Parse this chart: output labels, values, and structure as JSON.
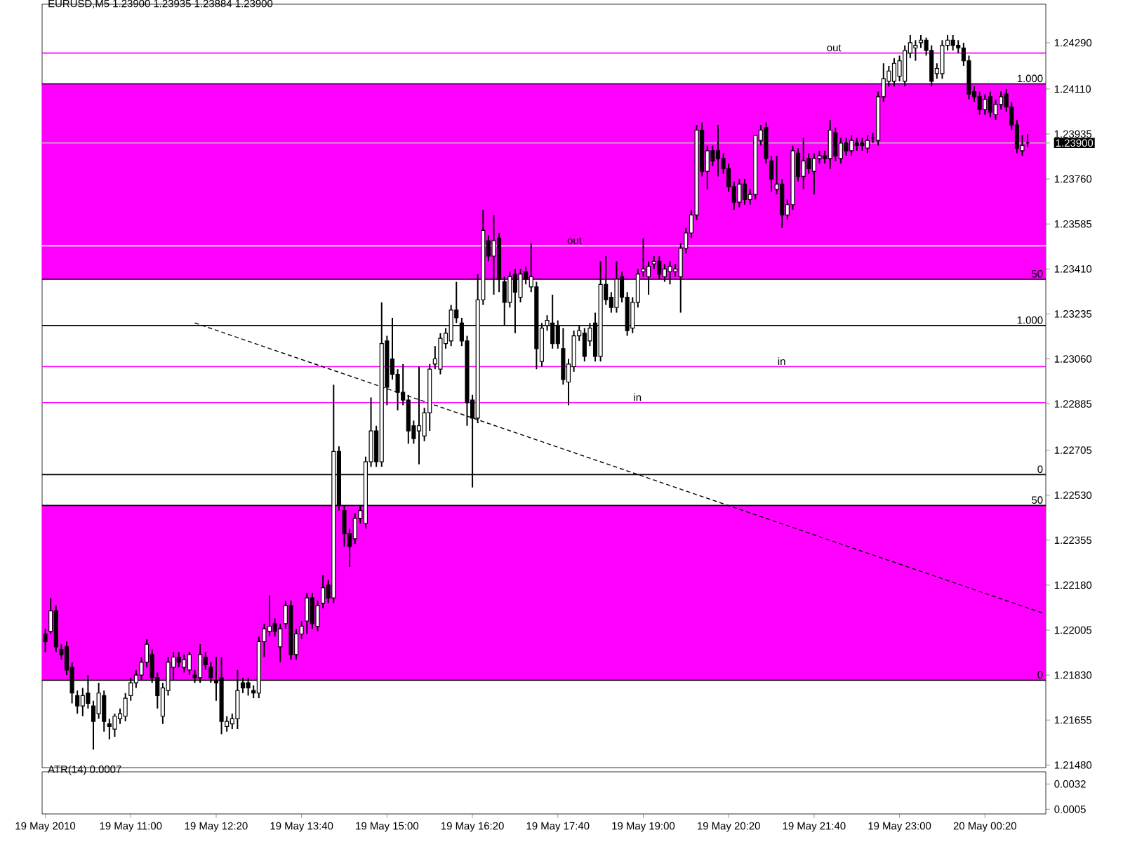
{
  "chart_data": [
    {
      "type": "candlestick",
      "title": "EURUSD,M5 1.23900 1.23935 1.23884 1.23900",
      "xlim": [
        "2010-05-19T09:37",
        "2010-05-20T01:17"
      ],
      "ylim": [
        1.2147,
        1.2444
      ],
      "tick_labels": "y",
      "yticks": [
        {
          "value": 1.2429,
          "label": "1.24290"
        },
        {
          "value": 1.2411,
          "label": "1.24110"
        },
        {
          "value": 1.23935,
          "label": "1.23935"
        },
        {
          "value": 1.239,
          "label": "1.23900"
        },
        {
          "value": 1.2376,
          "label": "1.23760"
        },
        {
          "value": 1.23585,
          "label": "1.23585"
        },
        {
          "value": 1.2341,
          "label": "1.23410"
        },
        {
          "value": 1.23235,
          "label": "1.23235"
        },
        {
          "value": 1.2306,
          "label": "1.23060"
        },
        {
          "value": 1.22885,
          "label": "1.22885"
        },
        {
          "value": 1.22705,
          "label": "1.22705"
        },
        {
          "value": 1.2253,
          "label": "1.22530"
        },
        {
          "value": 1.22355,
          "label": "1.22355"
        },
        {
          "value": 1.2218,
          "label": "1.22180"
        },
        {
          "value": 1.22005,
          "label": "1.22005"
        },
        {
          "value": 1.2183,
          "label": "1.21830"
        },
        {
          "value": 1.21655,
          "label": "1.21655"
        },
        {
          "value": 1.2148,
          "label": "1.21480"
        }
      ],
      "bands": [
        {
          "axis": "y",
          "from": 1.2337,
          "to": 1.2413,
          "color": "#ff00ff"
        },
        {
          "axis": "y",
          "from": 1.2181,
          "to": 1.2249,
          "color": "#ff00ff"
        }
      ],
      "ref_lines": [
        {
          "axis": "y",
          "value": 1.2413,
          "color": "#000000"
        },
        {
          "axis": "y",
          "value": 1.2337,
          "color": "#000000"
        },
        {
          "axis": "y",
          "value": 1.2319,
          "color": "#000000"
        },
        {
          "axis": "y",
          "value": 1.2261,
          "color": "#000000"
        },
        {
          "axis": "y",
          "value": 1.2249,
          "color": "#000000"
        },
        {
          "axis": "y",
          "value": 1.2181,
          "color": "#000000"
        },
        {
          "axis": "y",
          "value": 1.2425,
          "color": "#ff00ff"
        },
        {
          "axis": "y",
          "value": 1.235,
          "color": "#ffffff"
        },
        {
          "axis": "y",
          "value": 1.2303,
          "color": "#ff00ff"
        },
        {
          "axis": "y",
          "value": 1.2289,
          "color": "#ff00ff"
        },
        {
          "axis": "y",
          "value": 1.239,
          "color": "#c0c0c0"
        }
      ],
      "annotations": [
        {
          "text": "1.000",
          "x": "2010-05-20T01:16",
          "y": 1.2413
        },
        {
          "text": "50",
          "x": "2010-05-20T01:16",
          "y": 1.2337
        },
        {
          "text": "1.000",
          "x": "2010-05-20T01:16",
          "y": 1.2319
        },
        {
          "text": "0",
          "x": "2010-05-20T01:16",
          "y": 1.2261
        },
        {
          "text": "50",
          "x": "2010-05-20T01:16",
          "y": 1.2249
        },
        {
          "text": "0",
          "x": "2010-05-20T01:16",
          "y": 1.2181
        },
        {
          "text": "out",
          "x": "2010-05-19T22:07",
          "y": 1.2425
        },
        {
          "text": "out",
          "x": "2010-05-19T18:04",
          "y": 1.235
        },
        {
          "text": "in",
          "x": "2010-05-19T21:15",
          "y": 1.2303
        },
        {
          "text": "in",
          "x": "2010-05-19T19:00",
          "y": 1.2289
        }
      ],
      "series": [
        {
          "type": "line",
          "x": [
            "2010-05-19T12:00",
            "2010-05-20T01:15"
          ],
          "values": [
            1.232,
            1.2207
          ],
          "color": "#000000",
          "line_style": "dashed"
        }
      ],
      "x": [
        "2010-05-19T09:40",
        "2010-05-19T09:45",
        "2010-05-19T09:50",
        "2010-05-19T09:55",
        "2010-05-19T10:00",
        "2010-05-19T10:05",
        "2010-05-19T10:10",
        "2010-05-19T10:15",
        "2010-05-19T10:20",
        "2010-05-19T10:25",
        "2010-05-19T10:30",
        "2010-05-19T10:35",
        "2010-05-19T10:40",
        "2010-05-19T10:45",
        "2010-05-19T10:50",
        "2010-05-19T10:55",
        "2010-05-19T11:00",
        "2010-05-19T11:05",
        "2010-05-19T11:10",
        "2010-05-19T11:15",
        "2010-05-19T11:20",
        "2010-05-19T11:25",
        "2010-05-19T11:30",
        "2010-05-19T11:35",
        "2010-05-19T11:40",
        "2010-05-19T11:45",
        "2010-05-19T11:50",
        "2010-05-19T11:55",
        "2010-05-19T12:00",
        "2010-05-19T12:05",
        "2010-05-19T12:10",
        "2010-05-19T12:15",
        "2010-05-19T12:20",
        "2010-05-19T12:25",
        "2010-05-19T12:30",
        "2010-05-19T12:35",
        "2010-05-19T12:40",
        "2010-05-19T12:45",
        "2010-05-19T12:50",
        "2010-05-19T12:55",
        "2010-05-19T13:00",
        "2010-05-19T13:05",
        "2010-05-19T13:10",
        "2010-05-19T13:15",
        "2010-05-19T13:20",
        "2010-05-19T13:25",
        "2010-05-19T13:30",
        "2010-05-19T13:35",
        "2010-05-19T13:40",
        "2010-05-19T13:45",
        "2010-05-19T13:50",
        "2010-05-19T13:55",
        "2010-05-19T14:00",
        "2010-05-19T14:05",
        "2010-05-19T14:10",
        "2010-05-19T14:15",
        "2010-05-19T14:20",
        "2010-05-19T14:25",
        "2010-05-19T14:30",
        "2010-05-19T14:35",
        "2010-05-19T14:40",
        "2010-05-19T14:45",
        "2010-05-19T14:50",
        "2010-05-19T14:55",
        "2010-05-19T15:00",
        "2010-05-19T15:05",
        "2010-05-19T15:10",
        "2010-05-19T15:15",
        "2010-05-19T15:20",
        "2010-05-19T15:25",
        "2010-05-19T15:30",
        "2010-05-19T15:35",
        "2010-05-19T15:40",
        "2010-05-19T15:45",
        "2010-05-19T15:50",
        "2010-05-19T15:55",
        "2010-05-19T16:00",
        "2010-05-19T16:05",
        "2010-05-19T16:10",
        "2010-05-19T16:15",
        "2010-05-19T16:20",
        "2010-05-19T16:25",
        "2010-05-19T16:30",
        "2010-05-19T16:35",
        "2010-05-19T16:40",
        "2010-05-19T16:45",
        "2010-05-19T16:50",
        "2010-05-19T16:55",
        "2010-05-19T17:00",
        "2010-05-19T17:05",
        "2010-05-19T17:10",
        "2010-05-19T17:15",
        "2010-05-19T17:20",
        "2010-05-19T17:25",
        "2010-05-19T17:30",
        "2010-05-19T17:35",
        "2010-05-19T17:40",
        "2010-05-19T17:45",
        "2010-05-19T17:50",
        "2010-05-19T17:55",
        "2010-05-19T18:00",
        "2010-05-19T18:05",
        "2010-05-19T18:10",
        "2010-05-19T18:15",
        "2010-05-19T18:20",
        "2010-05-19T18:25",
        "2010-05-19T18:30",
        "2010-05-19T18:35",
        "2010-05-19T18:40",
        "2010-05-19T18:45",
        "2010-05-19T18:50",
        "2010-05-19T18:55",
        "2010-05-19T19:00",
        "2010-05-19T19:05",
        "2010-05-19T19:10",
        "2010-05-19T19:15",
        "2010-05-19T19:20",
        "2010-05-19T19:25",
        "2010-05-19T19:30",
        "2010-05-19T19:35",
        "2010-05-19T19:40",
        "2010-05-19T19:45",
        "2010-05-19T19:50",
        "2010-05-19T19:55",
        "2010-05-19T20:00",
        "2010-05-19T20:05",
        "2010-05-19T20:10",
        "2010-05-19T20:15",
        "2010-05-19T20:20",
        "2010-05-19T20:25",
        "2010-05-19T20:30",
        "2010-05-19T20:35",
        "2010-05-19T20:40",
        "2010-05-19T20:45",
        "2010-05-19T20:50",
        "2010-05-19T20:55",
        "2010-05-19T21:00",
        "2010-05-19T21:05",
        "2010-05-19T21:10",
        "2010-05-19T21:15",
        "2010-05-19T21:20",
        "2010-05-19T21:25",
        "2010-05-19T21:30",
        "2010-05-19T21:35",
        "2010-05-19T21:40",
        "2010-05-19T21:45",
        "2010-05-19T21:50",
        "2010-05-19T21:55",
        "2010-05-19T22:00",
        "2010-05-19T22:05",
        "2010-05-19T22:10",
        "2010-05-19T22:15",
        "2010-05-19T22:20",
        "2010-05-19T22:25",
        "2010-05-19T22:30",
        "2010-05-19T22:35",
        "2010-05-19T22:40",
        "2010-05-19T22:45",
        "2010-05-19T22:50",
        "2010-05-19T22:55",
        "2010-05-19T23:00",
        "2010-05-19T23:05",
        "2010-05-19T23:10",
        "2010-05-19T23:15",
        "2010-05-19T23:20",
        "2010-05-19T23:25",
        "2010-05-19T23:30",
        "2010-05-19T23:35",
        "2010-05-19T23:40",
        "2010-05-19T23:45",
        "2010-05-19T23:50",
        "2010-05-19T23:55",
        "2010-05-20T00:00",
        "2010-05-20T00:05",
        "2010-05-20T00:10",
        "2010-05-20T00:15",
        "2010-05-20T00:20",
        "2010-05-20T00:25",
        "2010-05-20T00:30",
        "2010-05-20T00:35",
        "2010-05-20T00:40",
        "2010-05-20T00:45",
        "2010-05-20T00:50",
        "2010-05-20T00:55",
        "2010-05-20T01:00"
      ],
      "ohlc": [
        [
          1.2199,
          1.2201,
          1.2192,
          1.2196
        ],
        [
          1.22,
          1.2213,
          1.2199,
          1.2208
        ],
        [
          1.2208,
          1.221,
          1.2192,
          1.2194
        ],
        [
          1.2193,
          1.2195,
          1.2189,
          1.2191
        ],
        [
          1.2194,
          1.2196,
          1.2183,
          1.2185
        ],
        [
          1.2186,
          1.2188,
          1.2172,
          1.2176
        ],
        [
          1.2175,
          1.2177,
          1.2168,
          1.2171
        ],
        [
          1.2171,
          1.2178,
          1.2167,
          1.2175
        ],
        [
          1.2176,
          1.2183,
          1.217,
          1.2172
        ],
        [
          1.2171,
          1.2173,
          1.2154,
          1.2165
        ],
        [
          1.2168,
          1.218,
          1.2166,
          1.2176
        ],
        [
          1.2175,
          1.2177,
          1.2161,
          1.2165
        ],
        [
          1.2164,
          1.2166,
          1.2158,
          1.2163
        ],
        [
          1.2162,
          1.2168,
          1.2159,
          1.2167
        ],
        [
          1.2166,
          1.217,
          1.2164,
          1.2168
        ],
        [
          1.2167,
          1.2176,
          1.2165,
          1.2174
        ],
        [
          1.2175,
          1.2182,
          1.2173,
          1.218
        ],
        [
          1.218,
          1.2185,
          1.2178,
          1.2183
        ],
        [
          1.2183,
          1.219,
          1.2181,
          1.2188
        ],
        [
          1.2188,
          1.2197,
          1.2186,
          1.2195
        ],
        [
          1.2191,
          1.2193,
          1.218,
          1.2182
        ],
        [
          1.2182,
          1.2184,
          1.217,
          1.2175
        ],
        [
          1.2167,
          1.218,
          1.2164,
          1.2178
        ],
        [
          1.2177,
          1.219,
          1.2175,
          1.2188
        ],
        [
          1.2186,
          1.2192,
          1.2181,
          1.219
        ],
        [
          1.219,
          1.2192,
          1.2186,
          1.2188
        ],
        [
          1.2186,
          1.2191,
          1.2184,
          1.2189
        ],
        [
          1.2185,
          1.2192,
          1.2183,
          1.2191
        ],
        [
          1.2183,
          1.2185,
          1.218,
          1.2182
        ],
        [
          1.2182,
          1.2195,
          1.218,
          1.2191
        ],
        [
          1.219,
          1.2192,
          1.2185,
          1.2187
        ],
        [
          1.2186,
          1.2188,
          1.218,
          1.2182
        ],
        [
          1.2181,
          1.219,
          1.2173,
          1.218
        ],
        [
          1.2182,
          1.219,
          1.216,
          1.2165
        ],
        [
          1.2163,
          1.2167,
          1.2161,
          1.2165
        ],
        [
          1.2164,
          1.2168,
          1.2162,
          1.2166
        ],
        [
          1.2166,
          1.2185,
          1.2162,
          1.2177
        ],
        [
          1.218,
          1.2182,
          1.2176,
          1.2178
        ],
        [
          1.218,
          1.2182,
          1.2175,
          1.2178
        ],
        [
          1.2177,
          1.2179,
          1.2174,
          1.2176
        ],
        [
          1.2176,
          1.2198,
          1.2174,
          1.2196
        ],
        [
          1.2196,
          1.2203,
          1.219,
          1.2201
        ],
        [
          1.22,
          1.2214,
          1.2198,
          1.2202
        ],
        [
          1.2203,
          1.2205,
          1.2198,
          1.22
        ],
        [
          1.2194,
          1.2203,
          1.2188,
          1.2201
        ],
        [
          1.2203,
          1.2212,
          1.2201,
          1.221
        ],
        [
          1.221,
          1.2212,
          1.2189,
          1.2191
        ],
        [
          1.2191,
          1.2201,
          1.2189,
          1.2199
        ],
        [
          1.2199,
          1.2204,
          1.2197,
          1.2202
        ],
        [
          1.2204,
          1.2215,
          1.2199,
          1.2213
        ],
        [
          1.2213,
          1.2215,
          1.2201,
          1.2203
        ],
        [
          1.2202,
          1.2212,
          1.22,
          1.221
        ],
        [
          1.2211,
          1.2222,
          1.2209,
          1.2217
        ],
        [
          1.2218,
          1.222,
          1.2211,
          1.2213
        ],
        [
          1.2213,
          1.2296,
          1.2211,
          1.227
        ],
        [
          1.227,
          1.2272,
          1.2247,
          1.2249
        ],
        [
          1.2247,
          1.2249,
          1.2233,
          1.2238
        ],
        [
          1.2238,
          1.224,
          1.2225,
          1.2233
        ],
        [
          1.2236,
          1.2246,
          1.2234,
          1.2244
        ],
        [
          1.2244,
          1.2249,
          1.2242,
          1.2247
        ],
        [
          1.2242,
          1.2268,
          1.224,
          1.2266
        ],
        [
          1.2266,
          1.2291,
          1.2264,
          1.2278
        ],
        [
          1.2278,
          1.228,
          1.2264,
          1.2266
        ],
        [
          1.2266,
          1.2328,
          1.2264,
          1.2312
        ],
        [
          1.2313,
          1.2315,
          1.2288,
          1.2295
        ],
        [
          1.2306,
          1.2322,
          1.2298,
          1.23
        ],
        [
          1.23,
          1.2302,
          1.2286,
          1.2293
        ],
        [
          1.2293,
          1.2304,
          1.2288,
          1.229
        ],
        [
          1.229,
          1.2292,
          1.2273,
          1.2278
        ],
        [
          1.228,
          1.2282,
          1.2273,
          1.2275
        ],
        [
          1.2278,
          1.2303,
          1.2265,
          1.228
        ],
        [
          1.2276,
          1.2287,
          1.2274,
          1.2285
        ],
        [
          1.2285,
          1.2304,
          1.2278,
          1.2302
        ],
        [
          1.2304,
          1.2311,
          1.2302,
          1.2306
        ],
        [
          1.2302,
          1.2316,
          1.23,
          1.2314
        ],
        [
          1.2312,
          1.2318,
          1.231,
          1.2316
        ],
        [
          1.2313,
          1.2327,
          1.2311,
          1.2325
        ],
        [
          1.2325,
          1.2336,
          1.232,
          1.2322
        ],
        [
          1.232,
          1.2322,
          1.2311,
          1.2313
        ],
        [
          1.2313,
          1.2315,
          1.228,
          1.2289
        ],
        [
          1.229,
          1.2292,
          1.2256,
          1.2283
        ],
        [
          1.2283,
          1.2339,
          1.2281,
          1.2329
        ],
        [
          1.2329,
          1.2364,
          1.2327,
          1.2356
        ],
        [
          1.2352,
          1.2354,
          1.2344,
          1.2346
        ],
        [
          1.2346,
          1.2362,
          1.2331,
          1.2352
        ],
        [
          1.2353,
          1.2355,
          1.2332,
          1.2337
        ],
        [
          1.2336,
          1.2338,
          1.2319,
          1.2328
        ],
        [
          1.2328,
          1.234,
          1.2326,
          1.2338
        ],
        [
          1.2339,
          1.2341,
          1.2316,
          1.2332
        ],
        [
          1.233,
          1.2341,
          1.2328,
          1.2339
        ],
        [
          1.234,
          1.2342,
          1.2335,
          1.2337
        ],
        [
          1.2334,
          1.2351,
          1.2332,
          1.2338
        ],
        [
          1.2334,
          1.2336,
          1.2302,
          1.231
        ],
        [
          1.2305,
          1.232,
          1.2303,
          1.2318
        ],
        [
          1.2319,
          1.2323,
          1.2317,
          1.2321
        ],
        [
          1.232,
          1.2331,
          1.231,
          1.2312
        ],
        [
          1.2319,
          1.2321,
          1.231,
          1.2312
        ],
        [
          1.231,
          1.2318,
          1.2296,
          1.2298
        ],
        [
          1.2297,
          1.2306,
          1.2288,
          1.2304
        ],
        [
          1.2303,
          1.2317,
          1.2301,
          1.2315
        ],
        [
          1.2315,
          1.2319,
          1.2313,
          1.2317
        ],
        [
          1.2316,
          1.2318,
          1.2305,
          1.2307
        ],
        [
          1.2313,
          1.232,
          1.2311,
          1.2318
        ],
        [
          1.232,
          1.2324,
          1.2305,
          1.2307
        ],
        [
          1.2307,
          1.2344,
          1.2305,
          1.2335
        ],
        [
          1.2335,
          1.2346,
          1.2327,
          1.2329
        ],
        [
          1.233,
          1.2332,
          1.2324,
          1.2326
        ],
        [
          1.2326,
          1.2344,
          1.2324,
          1.2337
        ],
        [
          1.2338,
          1.234,
          1.2328,
          1.233
        ],
        [
          1.233,
          1.2332,
          1.2315,
          1.2317
        ],
        [
          1.2318,
          1.233,
          1.2316,
          1.2328
        ],
        [
          1.2328,
          1.2341,
          1.2326,
          1.2339
        ],
        [
          1.234,
          1.2353,
          1.2338,
          1.2341
        ],
        [
          1.2338,
          1.2344,
          1.2331,
          1.2342
        ],
        [
          1.2343,
          1.2346,
          1.2341,
          1.2344
        ],
        [
          1.2344,
          1.2346,
          1.2337,
          1.2339
        ],
        [
          1.2338,
          1.2343,
          1.2336,
          1.2341
        ],
        [
          1.234,
          1.2344,
          1.2335,
          1.2342
        ],
        [
          1.234,
          1.2343,
          1.2338,
          1.2341
        ],
        [
          1.2338,
          1.2351,
          1.2324,
          1.2349
        ],
        [
          1.2349,
          1.2357,
          1.2347,
          1.2355
        ],
        [
          1.2355,
          1.2364,
          1.2353,
          1.2362
        ],
        [
          1.2362,
          1.2397,
          1.236,
          1.2395
        ],
        [
          1.2395,
          1.2398,
          1.2377,
          1.2379
        ],
        [
          1.2379,
          1.2389,
          1.2372,
          1.2387
        ],
        [
          1.2387,
          1.2389,
          1.2381,
          1.2383
        ],
        [
          1.2387,
          1.2397,
          1.2377,
          1.2384
        ],
        [
          1.2384,
          1.2386,
          1.2378,
          1.238
        ],
        [
          1.238,
          1.2382,
          1.2371,
          1.2373
        ],
        [
          1.2373,
          1.2375,
          1.2364,
          1.2367
        ],
        [
          1.2367,
          1.2376,
          1.2365,
          1.2374
        ],
        [
          1.2374,
          1.2376,
          1.2366,
          1.2368
        ],
        [
          1.2368,
          1.2372,
          1.2366,
          1.237
        ],
        [
          1.237,
          1.2393,
          1.2368,
          1.2393
        ],
        [
          1.2391,
          1.2397,
          1.2389,
          1.2395
        ],
        [
          1.2396,
          1.2398,
          1.2382,
          1.2384
        ],
        [
          1.2383,
          1.2385,
          1.2371,
          1.2376
        ],
        [
          1.2372,
          1.2385,
          1.237,
          1.2374
        ],
        [
          1.2374,
          1.2376,
          1.2357,
          1.2362
        ],
        [
          1.2362,
          1.2368,
          1.236,
          1.2366
        ],
        [
          1.2366,
          1.2389,
          1.2364,
          1.2387
        ],
        [
          1.2386,
          1.2388,
          1.2375,
          1.2377
        ],
        [
          1.2377,
          1.2392,
          1.2372,
          1.2383
        ],
        [
          1.2384,
          1.2386,
          1.2378,
          1.238
        ],
        [
          1.2379,
          1.2386,
          1.237,
          1.2384
        ],
        [
          1.2384,
          1.2387,
          1.2382,
          1.2385
        ],
        [
          1.2385,
          1.2387,
          1.2382,
          1.2384
        ],
        [
          1.2384,
          1.2399,
          1.238,
          1.2395
        ],
        [
          1.2394,
          1.2396,
          1.2383,
          1.2385
        ],
        [
          1.2384,
          1.2392,
          1.2382,
          1.239
        ],
        [
          1.239,
          1.2392,
          1.2385,
          1.2387
        ],
        [
          1.2387,
          1.2393,
          1.2385,
          1.2391
        ],
        [
          1.239,
          1.2392,
          1.2387,
          1.2389
        ],
        [
          1.239,
          1.2392,
          1.2387,
          1.2389
        ],
        [
          1.2388,
          1.2393,
          1.2386,
          1.2391
        ],
        [
          1.2392,
          1.2394,
          1.239,
          1.2392
        ],
        [
          1.2391,
          1.241,
          1.2389,
          1.2408
        ],
        [
          1.2408,
          1.2421,
          1.2406,
          1.2415
        ],
        [
          1.2414,
          1.242,
          1.2412,
          1.2418
        ],
        [
          1.2414,
          1.2423,
          1.2412,
          1.2421
        ],
        [
          1.2416,
          1.2424,
          1.2414,
          1.2422
        ],
        [
          1.2414,
          1.2428,
          1.2412,
          1.2426
        ],
        [
          1.2425,
          1.2432,
          1.2423,
          1.2429
        ],
        [
          1.2427,
          1.243,
          1.2422,
          1.2428
        ],
        [
          1.2429,
          1.2432,
          1.2427,
          1.243
        ],
        [
          1.243,
          1.2431,
          1.2424,
          1.2426
        ],
        [
          1.2426,
          1.2428,
          1.2412,
          1.2414
        ],
        [
          1.2417,
          1.2421,
          1.2415,
          1.2419
        ],
        [
          1.2417,
          1.243,
          1.2415,
          1.2428
        ],
        [
          1.2428,
          1.2432,
          1.2426,
          1.243
        ],
        [
          1.243,
          1.2432,
          1.2426,
          1.2428
        ],
        [
          1.2428,
          1.243,
          1.2425,
          1.2427
        ],
        [
          1.2427,
          1.2429,
          1.242,
          1.2422
        ],
        [
          1.2422,
          1.2424,
          1.2407,
          1.2409
        ],
        [
          1.241,
          1.2412,
          1.2406,
          1.2408
        ],
        [
          1.2408,
          1.241,
          1.2401,
          1.2403
        ],
        [
          1.2403,
          1.2409,
          1.2401,
          1.2407
        ],
        [
          1.2408,
          1.241,
          1.24,
          1.2402
        ],
        [
          1.2401,
          1.2407,
          1.2399,
          1.2405
        ],
        [
          1.2405,
          1.241,
          1.2403,
          1.2408
        ],
        [
          1.2409,
          1.2411,
          1.2402,
          1.2404
        ],
        [
          1.2404,
          1.2406,
          1.2395,
          1.2397
        ],
        [
          1.2397,
          1.2399,
          1.2386,
          1.2388
        ],
        [
          1.2387,
          1.2393,
          1.2385,
          1.2389
        ],
        [
          1.239,
          1.23935,
          1.23884,
          1.239
        ]
      ]
    },
    {
      "type": "line",
      "title": "ATR(14) 0.0007",
      "xlim": [
        "2010-05-19T09:37",
        "2010-05-20T01:17"
      ],
      "ylim": [
        0,
        0.0045
      ],
      "yticks": [
        0.0032,
        0.0005
      ],
      "xticks": [
        {
          "value": "2010-05-19T09:40",
          "label": "19 May 2010"
        },
        {
          "value": "2010-05-19T11:00",
          "label": "19 May 11:00"
        },
        {
          "value": "2010-05-19T12:20",
          "label": "19 May 12:20"
        },
        {
          "value": "2010-05-19T13:40",
          "label": "19 May 13:40"
        },
        {
          "value": "2010-05-19T15:00",
          "label": "19 May 15:00"
        },
        {
          "value": "2010-05-19T16:20",
          "label": "19 May 16:20"
        },
        {
          "value": "2010-05-19T17:40",
          "label": "19 May 17:40"
        },
        {
          "value": "2010-05-19T19:00",
          "label": "19 May 19:00"
        },
        {
          "value": "2010-05-19T20:20",
          "label": "19 May 20:20"
        },
        {
          "value": "2010-05-19T21:40",
          "label": "19 May 21:40"
        },
        {
          "value": "2010-05-19T23:00",
          "label": "19 May 23:00"
        },
        {
          "value": "2010-05-20T00:20",
          "label": "20 May 00:20"
        }
      ]
    }
  ]
}
